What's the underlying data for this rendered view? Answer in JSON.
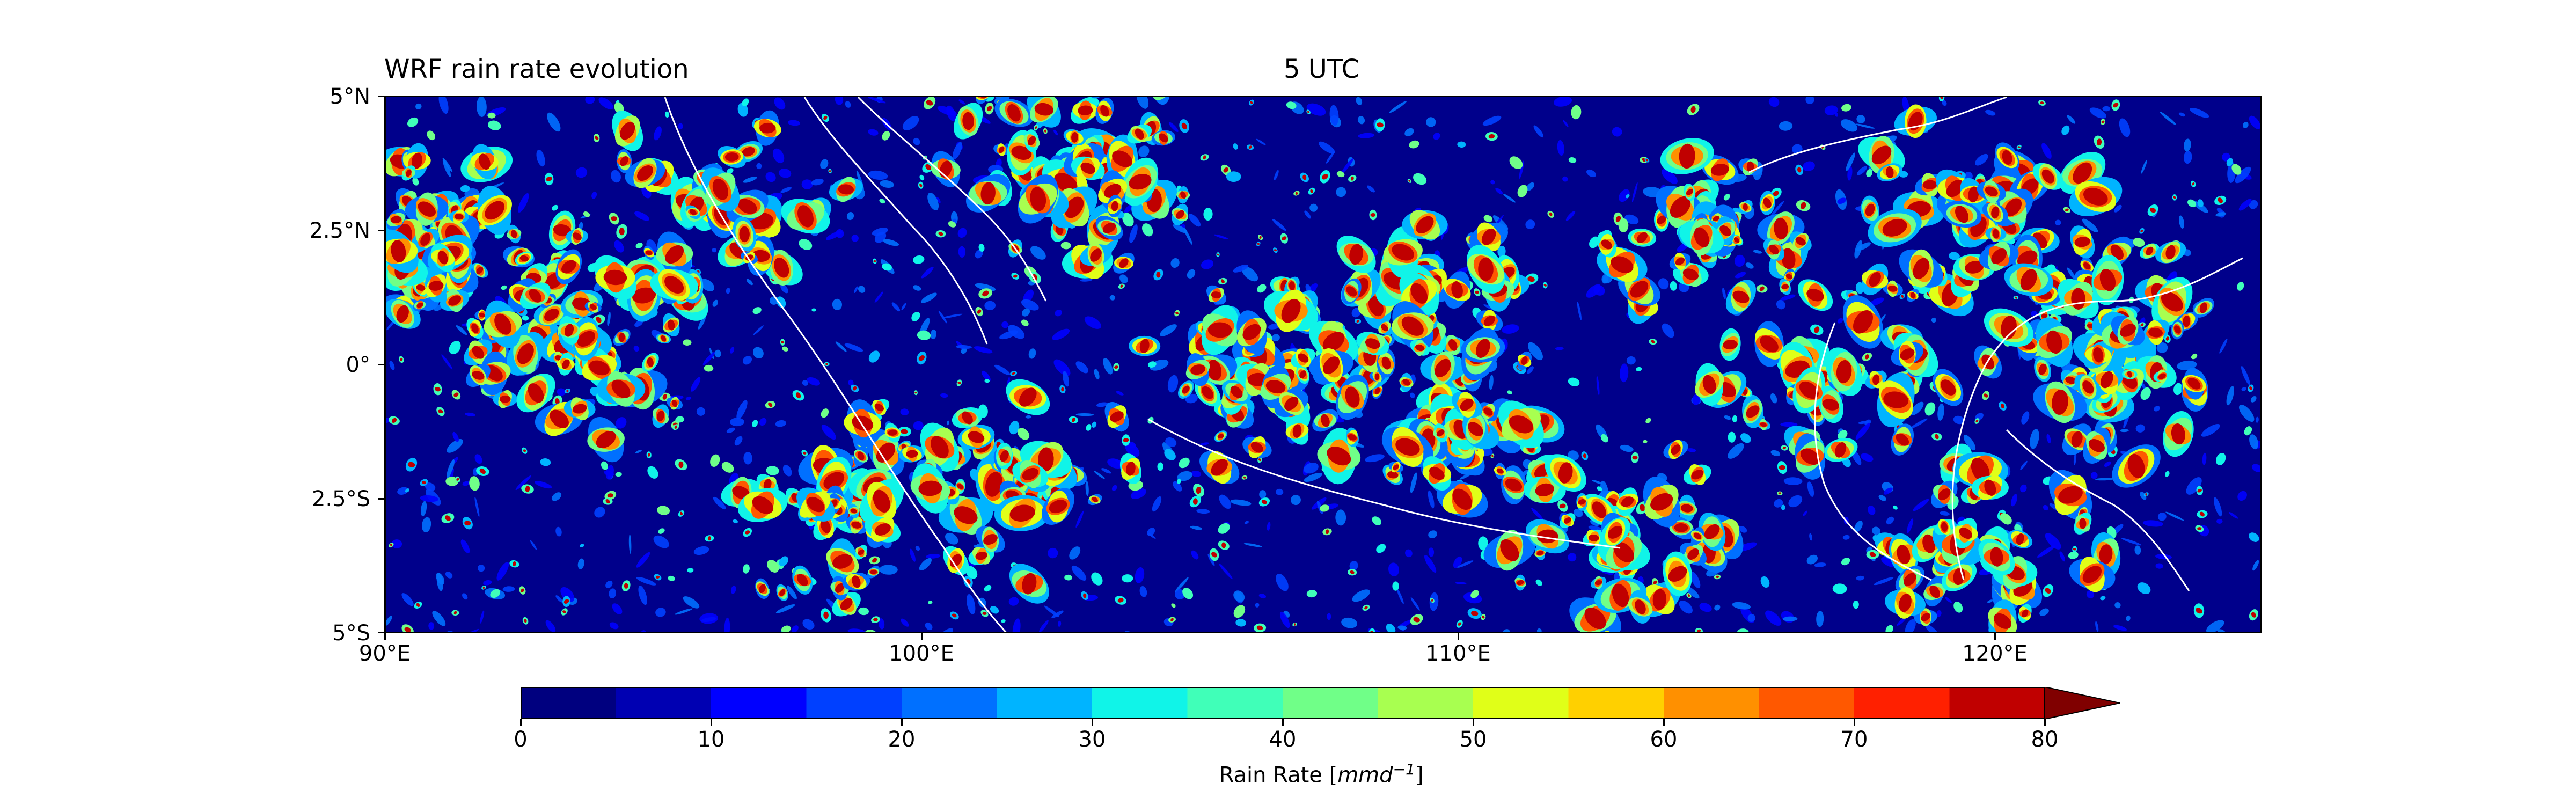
{
  "figure": {
    "title_left": "WRF rain rate evolution",
    "title_center": "5 UTC"
  },
  "map": {
    "lat_ticks": [
      "5°N",
      "2.5°N",
      "0°",
      "2.5°S",
      "5°S"
    ],
    "lon_ticks": [
      "90°E",
      "100°E",
      "110°E",
      "120°E"
    ],
    "lon_range": [
      90,
      125
    ],
    "lat_range": [
      -5,
      5
    ],
    "background_color": "#00008b",
    "coastline_color": "#ffffff"
  },
  "colorbar": {
    "label_text": "Rain Rate [",
    "label_unit_main": "mmd",
    "label_unit_exp": "−1",
    "label_end": "]",
    "tick_labels": [
      "0",
      "10",
      "20",
      "30",
      "40",
      "50",
      "60",
      "70",
      "80"
    ],
    "levels": [
      0,
      5,
      10,
      15,
      20,
      25,
      30,
      35,
      40,
      45,
      50,
      55,
      60,
      65,
      70,
      75,
      80
    ],
    "colors": [
      "#00007f",
      "#0000b2",
      "#0000ff",
      "#0040ff",
      "#0070ff",
      "#00b4ff",
      "#10f4e8",
      "#40ffb8",
      "#70ff88",
      "#a8ff50",
      "#e0ff18",
      "#ffd000",
      "#ff9000",
      "#ff5800",
      "#ff2000",
      "#c00000"
    ],
    "extend_color": "#800000",
    "extend": "max"
  }
}
